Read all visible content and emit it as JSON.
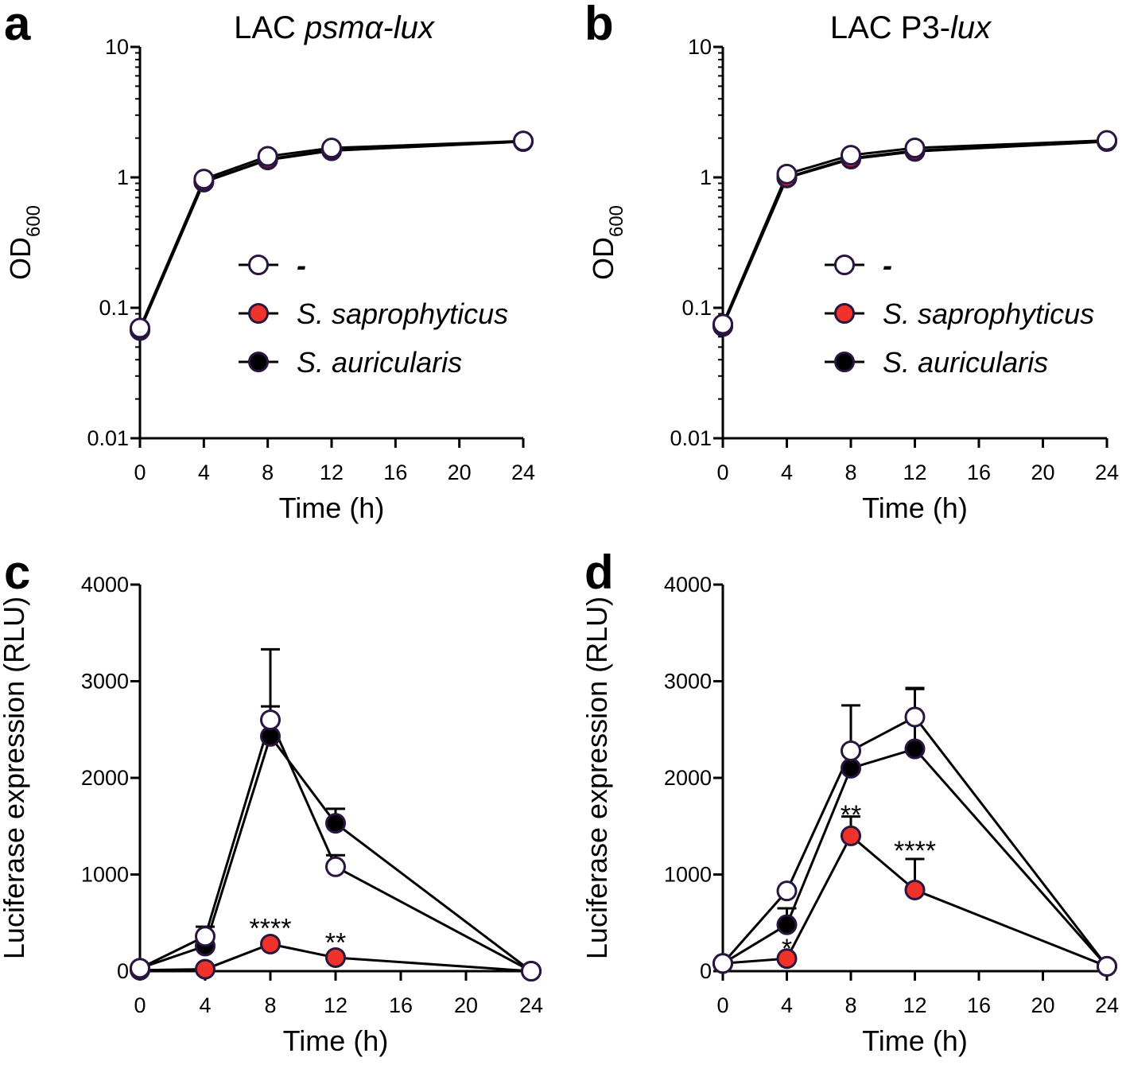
{
  "colors": {
    "none": "#ffffff",
    "saprophyticus": "#f0322b",
    "auricularis": "#000000",
    "marker_edge": "#2a1540",
    "line": "#000000"
  },
  "legend": {
    "items": [
      {
        "label": "-",
        "color": "#ffffff"
      },
      {
        "label": "S. saprophyticus",
        "color": "#f0322b"
      },
      {
        "label": "S. auricularis",
        "color": "#000000"
      }
    ]
  },
  "chart_data": [
    {
      "id": "a",
      "type": "line",
      "letter": "a",
      "title_plain": "LAC ",
      "title_italic": "psmα-lux",
      "xlabel": "Time (h)",
      "ylabel": "OD",
      "ylabel_sub": "600",
      "yscale": "log",
      "ylim": [
        0.01,
        10
      ],
      "yticks": [
        0.01,
        0.1,
        1,
        10
      ],
      "ytick_labels": [
        "0.01",
        "0.1",
        "1",
        "10"
      ],
      "xlim": [
        0,
        24
      ],
      "xticks": [
        0,
        4,
        8,
        12,
        16,
        20,
        24
      ],
      "xtick_labels": [
        "0",
        "4",
        "8",
        "12",
        "16",
        "20",
        "24"
      ],
      "x": [
        0,
        4,
        8,
        12,
        24
      ],
      "series": [
        {
          "name": "-",
          "values": [
            0.07,
            0.97,
            1.45,
            1.68,
            1.9
          ]
        },
        {
          "name": "S. saprophyticus",
          "values": [
            0.068,
            0.93,
            1.38,
            1.62,
            1.9
          ]
        },
        {
          "name": "S. auricularis",
          "values": [
            0.067,
            0.92,
            1.36,
            1.6,
            1.88
          ]
        }
      ],
      "legend": true
    },
    {
      "id": "b",
      "type": "line",
      "letter": "b",
      "title_plain": "LAC P3-",
      "title_italic": "lux",
      "xlabel": "Time (h)",
      "ylabel": "OD",
      "ylabel_sub": "600",
      "yscale": "log",
      "ylim": [
        0.01,
        10
      ],
      "yticks": [
        0.01,
        0.1,
        1,
        10
      ],
      "ytick_labels": [
        "0.01",
        "0.1",
        "1",
        "10"
      ],
      "xlim": [
        0,
        24
      ],
      "xticks": [
        0,
        4,
        8,
        12,
        16,
        20,
        24
      ],
      "xtick_labels": [
        "0",
        "4",
        "8",
        "12",
        "16",
        "20",
        "24"
      ],
      "x": [
        0,
        4,
        8,
        12,
        24
      ],
      "series": [
        {
          "name": "-",
          "values": [
            0.075,
            1.06,
            1.48,
            1.68,
            1.92
          ]
        },
        {
          "name": "S. saprophyticus",
          "values": [
            0.073,
            1.0,
            1.4,
            1.6,
            1.9
          ]
        },
        {
          "name": "S. auricularis",
          "values": [
            0.072,
            0.99,
            1.38,
            1.58,
            1.88
          ]
        }
      ],
      "legend": true
    },
    {
      "id": "c",
      "type": "line",
      "letter": "c",
      "title_plain": "",
      "title_italic": "",
      "xlabel": "Time (h)",
      "ylabel": "Luciferase expression (RLU)",
      "ylabel_sub": "",
      "yscale": "linear",
      "ylim": [
        0,
        4000
      ],
      "yticks": [
        0,
        1000,
        2000,
        3000,
        4000
      ],
      "ytick_labels": [
        "0",
        "1000",
        "2000",
        "3000",
        "4000"
      ],
      "xlim": [
        0,
        24
      ],
      "xticks": [
        0,
        4,
        8,
        12,
        16,
        20,
        24
      ],
      "xtick_labels": [
        "0",
        "4",
        "8",
        "12",
        "16",
        "20",
        "24"
      ],
      "x": [
        0,
        4,
        8,
        12,
        24
      ],
      "series": [
        {
          "name": "-",
          "values": [
            30,
            360,
            2600,
            1080,
            0
          ],
          "errors": [
            0,
            100,
            140,
            120,
            0
          ]
        },
        {
          "name": "S. saprophyticus",
          "values": [
            10,
            20,
            280,
            140,
            0
          ],
          "errors": [
            0,
            0,
            0,
            0,
            0
          ]
        },
        {
          "name": "S. auricularis",
          "values": [
            30,
            260,
            2430,
            1530,
            0
          ],
          "errors": [
            0,
            0,
            900,
            150,
            0
          ]
        }
      ],
      "annotations": [
        {
          "text": "****",
          "x": 8,
          "y": 450
        },
        {
          "text": "**",
          "x": 12,
          "y": 300
        }
      ],
      "legend": false
    },
    {
      "id": "d",
      "type": "line",
      "letter": "d",
      "title_plain": "",
      "title_italic": "",
      "xlabel": "Time (h)",
      "ylabel": "Luciferase expression (RLU)",
      "ylabel_sub": "",
      "yscale": "linear",
      "ylim": [
        0,
        4000
      ],
      "yticks": [
        0,
        1000,
        2000,
        3000,
        4000
      ],
      "ytick_labels": [
        "0",
        "1000",
        "2000",
        "3000",
        "4000"
      ],
      "xlim": [
        0,
        24
      ],
      "xticks": [
        0,
        4,
        8,
        12,
        16,
        20,
        24
      ],
      "xtick_labels": [
        "0",
        "4",
        "8",
        "12",
        "16",
        "20",
        "24"
      ],
      "x": [
        0,
        4,
        8,
        12,
        24
      ],
      "series": [
        {
          "name": "-",
          "values": [
            80,
            830,
            2280,
            2630,
            50
          ],
          "errors": [
            0,
            0,
            470,
            300,
            0
          ]
        },
        {
          "name": "S. saprophyticus",
          "values": [
            80,
            130,
            1400,
            840,
            50
          ],
          "errors": [
            0,
            0,
            200,
            320,
            0
          ]
        },
        {
          "name": "S. auricularis",
          "values": [
            80,
            480,
            2100,
            2300,
            50
          ],
          "errors": [
            0,
            170,
            0,
            620,
            0
          ]
        }
      ],
      "annotations": [
        {
          "text": "*",
          "x": 4,
          "y": 240
        },
        {
          "text": "**",
          "x": 8,
          "y": 1620
        },
        {
          "text": "****",
          "x": 12,
          "y": 1250
        }
      ],
      "legend": false
    }
  ]
}
